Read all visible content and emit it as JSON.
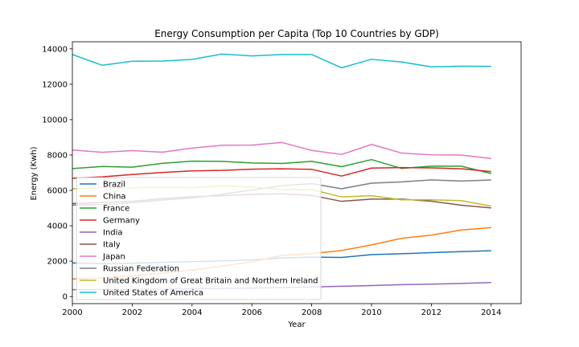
{
  "chart_data": {
    "type": "line",
    "title": "Energy Consumption per Capita (Top 10 Countries by GDP)",
    "xlabel": "Year",
    "ylabel": "Energy (Kwh)",
    "xlim": [
      2000,
      2015
    ],
    "ylim": [
      -400,
      14400
    ],
    "x": [
      2000,
      2001,
      2002,
      2003,
      2004,
      2005,
      2006,
      2007,
      2008,
      2009,
      2010,
      2011,
      2012,
      2013,
      2014
    ],
    "xticks": [
      2000,
      2002,
      2004,
      2006,
      2008,
      2010,
      2012,
      2014
    ],
    "xtick_labels": [
      "2000",
      "2002",
      "2004",
      "2006",
      "2008",
      "2010",
      "2012",
      "2014"
    ],
    "yticks": [
      0,
      2000,
      4000,
      6000,
      8000,
      10000,
      12000,
      14000
    ],
    "ytick_labels": [
      "0",
      "2000",
      "4000",
      "6000",
      "8000",
      "10000",
      "12000",
      "14000"
    ],
    "grid": false,
    "legend_position": "lower-left",
    "series": [
      {
        "name": "Brazil",
        "color": "#1f77b4",
        "values": [
          1900,
          1860,
          1880,
          1930,
          1970,
          2020,
          2070,
          2180,
          2230,
          2210,
          2370,
          2420,
          2480,
          2540,
          2590
        ]
      },
      {
        "name": "China",
        "color": "#ff7f0e",
        "values": [
          990,
          1060,
          1170,
          1320,
          1500,
          1720,
          1960,
          2320,
          2430,
          2600,
          2920,
          3290,
          3470,
          3760,
          3900
        ]
      },
      {
        "name": "France",
        "color": "#2ca02c",
        "values": [
          7230,
          7350,
          7310,
          7530,
          7650,
          7640,
          7550,
          7520,
          7640,
          7340,
          7740,
          7240,
          7370,
          7370,
          6950
        ]
      },
      {
        "name": "Germany",
        "color": "#d62728",
        "values": [
          6680,
          6770,
          6900,
          7010,
          7100,
          7130,
          7200,
          7220,
          7190,
          6810,
          7260,
          7290,
          7270,
          7220,
          7060
        ]
      },
      {
        "name": "India",
        "color": "#9467bd",
        "values": [
          390,
          400,
          410,
          420,
          440,
          460,
          480,
          510,
          540,
          580,
          620,
          670,
          700,
          740,
          790
        ]
      },
      {
        "name": "Italy",
        "color": "#8c564b",
        "values": [
          5260,
          5310,
          5380,
          5530,
          5640,
          5700,
          5780,
          5810,
          5720,
          5380,
          5510,
          5510,
          5390,
          5160,
          5010
        ]
      },
      {
        "name": "Japan",
        "color": "#e377c2",
        "values": [
          8280,
          8150,
          8250,
          8160,
          8390,
          8550,
          8560,
          8710,
          8260,
          8030,
          8600,
          8110,
          8010,
          8000,
          7800
        ]
      },
      {
        "name": "Russian Federation",
        "color": "#7f7f7f",
        "values": [
          5170,
          5190,
          5300,
          5450,
          5570,
          5780,
          6020,
          6270,
          6380,
          6090,
          6410,
          6480,
          6590,
          6530,
          6590
        ]
      },
      {
        "name": "United Kingdom of Great Britain and Northern Ireland",
        "color": "#bcbd22",
        "values": [
          6090,
          6160,
          6140,
          6180,
          6150,
          6260,
          6190,
          6050,
          6050,
          5630,
          5700,
          5470,
          5470,
          5420,
          5110
        ]
      },
      {
        "name": "United States of America",
        "color": "#17becf",
        "values": [
          13680,
          13070,
          13300,
          13310,
          13400,
          13710,
          13600,
          13680,
          13680,
          12930,
          13410,
          13260,
          12980,
          13020,
          13010
        ]
      }
    ]
  }
}
